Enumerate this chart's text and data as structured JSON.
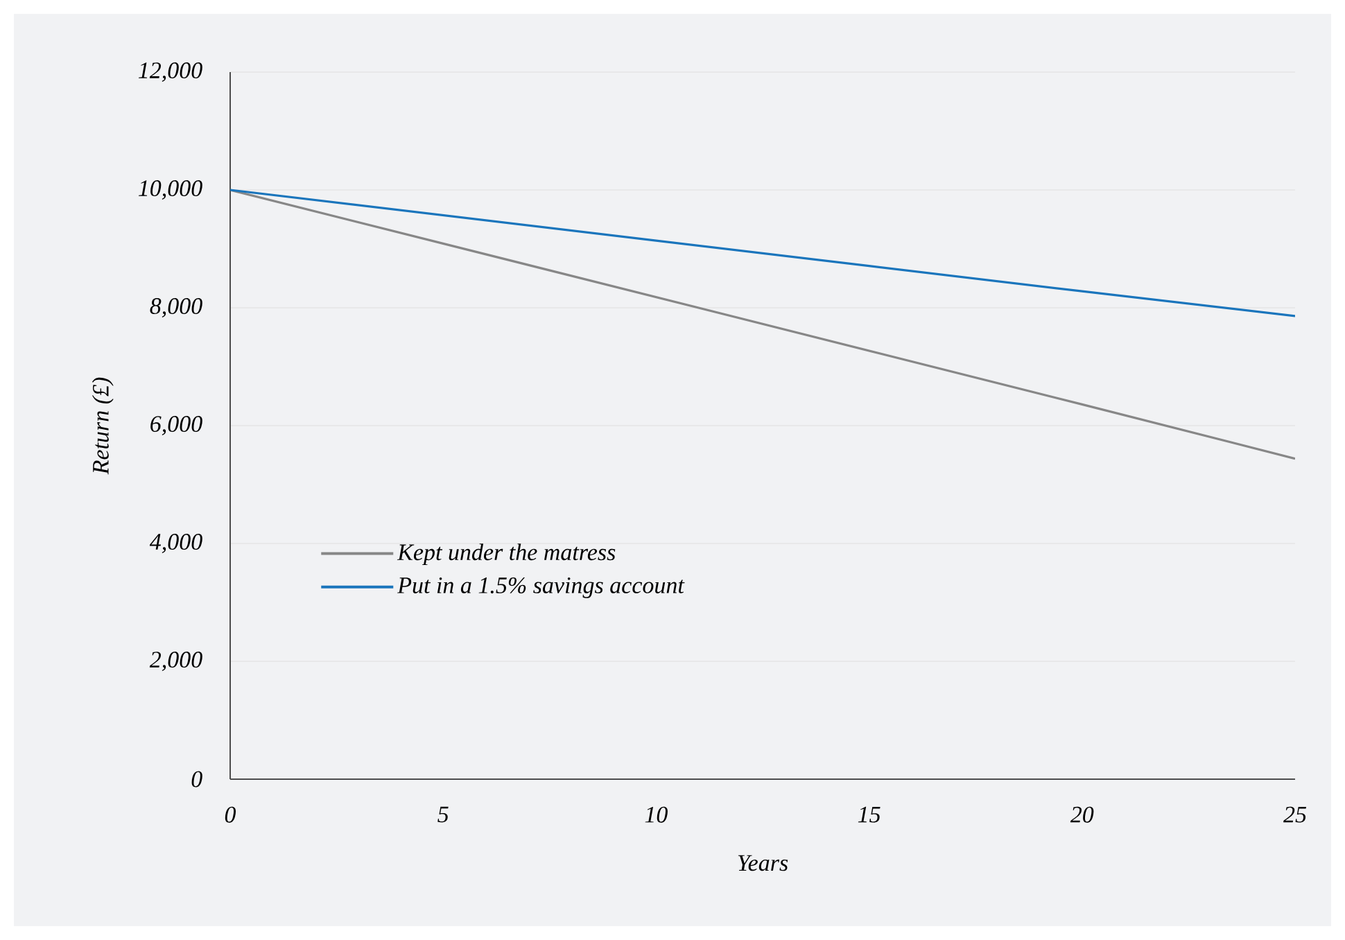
{
  "chart_data": {
    "type": "line",
    "xlabel": "Years",
    "ylabel": "Return (£)",
    "x": [
      0,
      5,
      10,
      15,
      20,
      25
    ],
    "series": [
      {
        "name": "Kept under the matress",
        "color": "#878787",
        "values": [
          10000,
          9090,
          8180,
          7270,
          6360,
          5440
        ]
      },
      {
        "name": "Put in a 1.5% savings account",
        "color": "#1a75bc",
        "values": [
          10000,
          9570,
          9140,
          8710,
          8280,
          7860
        ]
      }
    ],
    "xlim": [
      0,
      25
    ],
    "xticks": [
      0,
      5,
      10,
      15,
      20,
      25
    ],
    "ylim": [
      0,
      12000
    ],
    "yticks": [
      0,
      {
        "value": 2000,
        "label": "2,000"
      },
      {
        "value": 4000,
        "label": "4,000"
      },
      {
        "value": 6000,
        "label": "6,000"
      },
      {
        "value": 8000,
        "label": "8,000"
      },
      {
        "value": 10000,
        "label": "10,000"
      },
      {
        "value": 12000,
        "label": "12,000"
      }
    ],
    "grid": "y",
    "legend": "bottom left",
    "marker": "none",
    "line_style": "solid"
  }
}
